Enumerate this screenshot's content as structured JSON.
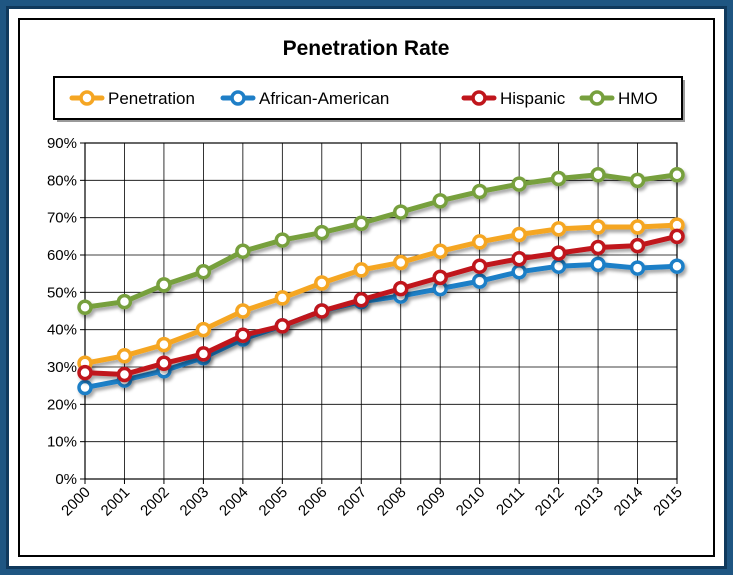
{
  "chart_data": {
    "type": "line",
    "title": "Penetration Rate",
    "xlabel": "",
    "ylabel": "",
    "x": [
      "2000",
      "2001",
      "2002",
      "2003",
      "2004",
      "2005",
      "2006",
      "2007",
      "2008",
      "2009",
      "2010",
      "2011",
      "2012",
      "2013",
      "2014",
      "2015"
    ],
    "ylim": [
      0,
      90
    ],
    "yticks": [
      0,
      10,
      20,
      30,
      40,
      50,
      60,
      70,
      80,
      90
    ],
    "ytick_labels": [
      "0%",
      "10%",
      "20%",
      "30%",
      "40%",
      "50%",
      "60%",
      "70%",
      "80%",
      "90%"
    ],
    "grid": true,
    "legend_position": "top",
    "series": [
      {
        "name": "Penetration",
        "color": "#f5a623",
        "values": [
          31,
          33,
          36,
          40,
          45,
          48.5,
          52.5,
          56,
          58,
          61,
          63.5,
          65.5,
          67,
          67.5,
          67.5,
          68
        ]
      },
      {
        "name": "African-American",
        "color": "#1f7fc7",
        "values": [
          24.5,
          26.5,
          29,
          32.5,
          37.5,
          41,
          45,
          47.5,
          49,
          51,
          53,
          55.5,
          57,
          57.5,
          56.5,
          57
        ]
      },
      {
        "name": "Hispanic",
        "color": "#c0161c",
        "values": [
          28.5,
          28,
          31,
          33.5,
          38.5,
          41,
          45,
          48,
          51,
          54,
          57,
          59,
          60.5,
          62,
          62.5,
          65
        ]
      },
      {
        "name": "HMO",
        "color": "#77a03e",
        "values": [
          46,
          47.5,
          52,
          55.5,
          61,
          64,
          66,
          68.5,
          71.5,
          74.5,
          77,
          79,
          80.5,
          81.5,
          80,
          81.5
        ]
      }
    ]
  }
}
